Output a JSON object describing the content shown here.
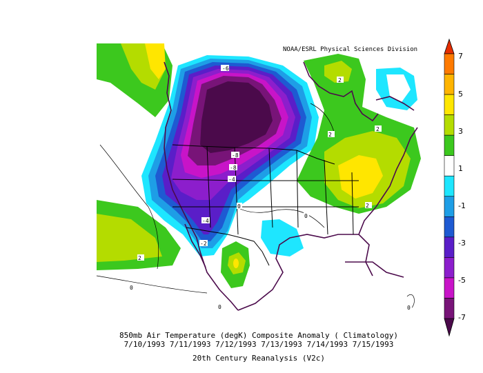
{
  "credit": "NOAA/ESRL Physical Sciences Division",
  "caption": {
    "line1": "850mb Air Temperature (degK) Composite Anomaly ( Climatology)",
    "line2": "7/10/1993 7/11/1993 7/12/1993 7/13/1993 7/14/1993 7/15/1993",
    "line3": "20th Century Reanalysis (V2c)"
  },
  "colorbar": {
    "labels": [
      "7",
      "5",
      "3",
      "1",
      "-1",
      "-3",
      "-5",
      "-7"
    ],
    "colors": [
      "#e62e00",
      "#ff7a00",
      "#ffb400",
      "#ffe600",
      "#b4dc00",
      "#3cc81e",
      "#ffffff",
      "#1ee6ff",
      "#1e9ee6",
      "#1e5ad2",
      "#5a1ec8",
      "#8c1ecc",
      "#c814c8",
      "#781478",
      "#4b0a4b"
    ]
  },
  "contour_labels": [
    "-6",
    "2",
    "2",
    "-8",
    "-8",
    "-4",
    "0",
    "-4",
    "-2",
    "0",
    "2",
    "0",
    "0",
    "2",
    "2",
    "0"
  ]
}
